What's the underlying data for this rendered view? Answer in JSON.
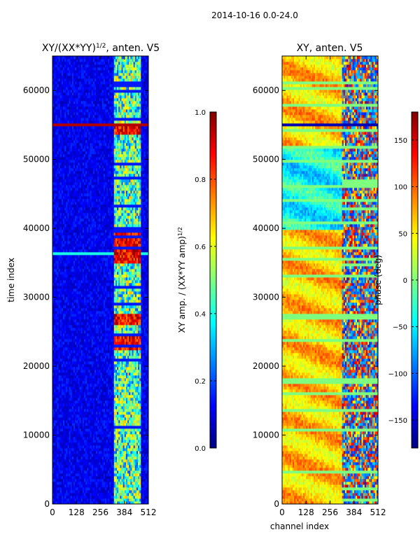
{
  "figure": {
    "suptitle": "2014-10-16 0.0-24.0",
    "colormap": [
      "#00007f",
      "#0000ff",
      "#007fff",
      "#00ffff",
      "#7fff7f",
      "#ffff00",
      "#ff7f00",
      "#ff0000",
      "#7f0000"
    ]
  },
  "chart_data": [
    {
      "type": "heatmap",
      "title": "XY/(XX*YY)",
      "title_superscript": "1/2",
      "title_suffix": ", anten. V5",
      "xlabel": "",
      "ylabel": "time index",
      "xlim": [
        0,
        512
      ],
      "ylim": [
        0,
        65000
      ],
      "x_ticks": [
        0,
        128,
        256,
        384,
        512
      ],
      "y_ticks": [
        0,
        10000,
        20000,
        30000,
        40000,
        50000,
        60000
      ],
      "colorbar": {
        "label": "XY amp. / (XX*YY amp)",
        "label_superscript": "1/2",
        "range": [
          0.0,
          1.0
        ],
        "ticks": [
          "0.0",
          "0.2",
          "0.4",
          "0.6",
          "0.8",
          "1.0"
        ]
      }
    },
    {
      "type": "heatmap",
      "title": "XY, anten. V5",
      "xlabel": "channel index",
      "ylabel": "",
      "xlim": [
        0,
        512
      ],
      "ylim": [
        0,
        65000
      ],
      "x_ticks": [
        0,
        128,
        256,
        384,
        512
      ],
      "y_ticks": [
        0,
        10000,
        20000,
        30000,
        40000,
        50000,
        60000
      ],
      "colorbar": {
        "label": "phase (deg)",
        "range": [
          -180,
          180
        ],
        "ticks": [
          "−150",
          "−100",
          "−50",
          "0",
          "50",
          "100",
          "150"
        ]
      }
    }
  ]
}
